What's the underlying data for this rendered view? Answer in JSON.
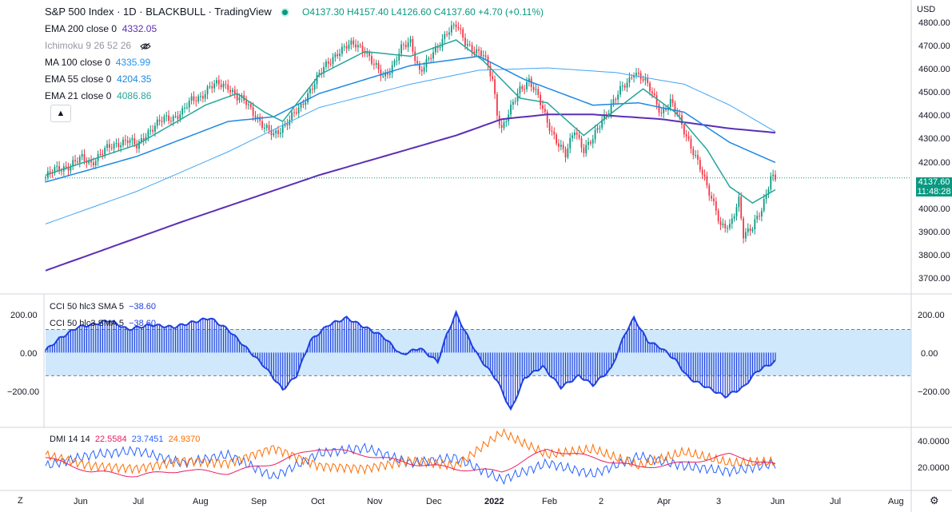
{
  "header": {
    "title": "S&P 500 Index · 1D · BLACKBULL · TradingView",
    "ohlc": "O4137.30 H4157.40 L4126.60 C4137.60 +4.70 (+0.11%)"
  },
  "indicators": [
    {
      "label": "EMA 200 close 0",
      "value": "4332.05",
      "color": "#5b2fb5"
    },
    {
      "label": "Ichimoku 9 26 52 26",
      "value": "",
      "color": "#9598a1"
    },
    {
      "label": "MA 100 close 0",
      "value": "4335.99",
      "color": "#2196f3"
    },
    {
      "label": "EMA 55 close 0",
      "value": "4204.35",
      "color": "#1e88e5"
    },
    {
      "label": "EMA 21 close 0",
      "value": "4086.86",
      "color": "#26a69a"
    }
  ],
  "colors": {
    "up": "#089981",
    "down": "#f23645",
    "ema200": "#5b2fb5",
    "ma100": "#42a5f5",
    "ema55": "#1e88e5",
    "ema21": "#26a69a",
    "cci": "#2041e0",
    "plus_di": "#2962ff",
    "minus_di": "#ff6d00",
    "adx": "#e91e63",
    "band": "#bbdefb"
  },
  "icons": {
    "visibility": "eye-off-icon",
    "collapse": "chevron-up-icon",
    "settings": "gear-icon"
  },
  "price_axis": {
    "currency": "USD",
    "ticks": [
      "4800.00",
      "4700.00",
      "4600.00",
      "4500.00",
      "4400.00",
      "4300.00",
      "4200.00",
      "4000.00",
      "3900.00",
      "3800.00",
      "3700.00"
    ],
    "last_price": "4137.60",
    "countdown": "11:48:28"
  },
  "cci_panel": {
    "label1": "CCI 50 hlc3 SMA 5",
    "value1": "−38.60",
    "label2": "CCI 50 hlc3 SMA 5",
    "value2": "−38.60",
    "ticks": [
      "200.00",
      "0.00",
      "−200.00"
    ]
  },
  "dmi_panel": {
    "label": "DMI 14 14",
    "adx": "22.5584",
    "plus_di": "23.7451",
    "minus_di": "24.9370",
    "ticks": [
      "40.0000",
      "20.0000"
    ]
  },
  "time_axis": {
    "labels": [
      "Jun",
      "Jul",
      "Aug",
      "Sep",
      "Oct",
      "Nov",
      "Dec",
      "2022",
      "Feb",
      "2",
      "Apr",
      "3",
      "Jun",
      "Jul",
      "Aug"
    ]
  },
  "controls": {
    "zoom_toggle": "Z"
  },
  "chart_data": {
    "type": "candlestick",
    "price_range": [
      3650,
      4850
    ],
    "cci_range": [
      -320,
      240
    ],
    "dmi_range": [
      5,
      48
    ],
    "months": [
      "Jun",
      "Jul",
      "Aug",
      "Sep",
      "Oct",
      "Nov",
      "Dec",
      "2022",
      "Feb",
      "2",
      "Apr",
      "3",
      "Jun",
      "Jul",
      "Aug"
    ],
    "close_path": [
      [
        0,
        4140
      ],
      [
        4,
        4170
      ],
      [
        10,
        4190
      ],
      [
        16,
        4220
      ],
      [
        20,
        4205
      ],
      [
        26,
        4255
      ],
      [
        32,
        4290
      ],
      [
        36,
        4300
      ],
      [
        40,
        4270
      ],
      [
        44,
        4330
      ],
      [
        48,
        4360
      ],
      [
        52,
        4390
      ],
      [
        56,
        4400
      ],
      [
        60,
        4420
      ],
      [
        64,
        4470
      ],
      [
        68,
        4490
      ],
      [
        72,
        4525
      ],
      [
        76,
        4540
      ],
      [
        80,
        4535
      ],
      [
        84,
        4480
      ],
      [
        88,
        4460
      ],
      [
        92,
        4410
      ],
      [
        96,
        4350
      ],
      [
        100,
        4320
      ],
      [
        104,
        4360
      ],
      [
        108,
        4400
      ],
      [
        112,
        4440
      ],
      [
        116,
        4520
      ],
      [
        120,
        4580
      ],
      [
        124,
        4630
      ],
      [
        128,
        4680
      ],
      [
        132,
        4700
      ],
      [
        136,
        4710
      ],
      [
        140,
        4690
      ],
      [
        144,
        4620
      ],
      [
        148,
        4570
      ],
      [
        152,
        4620
      ],
      [
        156,
        4690
      ],
      [
        160,
        4720
      ],
      [
        164,
        4600
      ],
      [
        168,
        4640
      ],
      [
        172,
        4700
      ],
      [
        176,
        4770
      ],
      [
        180,
        4790
      ],
      [
        184,
        4720
      ],
      [
        188,
        4690
      ],
      [
        192,
        4660
      ],
      [
        196,
        4560
      ],
      [
        198,
        4420
      ],
      [
        200,
        4350
      ],
      [
        204,
        4430
      ],
      [
        208,
        4520
      ],
      [
        212,
        4560
      ],
      [
        216,
        4480
      ],
      [
        220,
        4380
      ],
      [
        224,
        4300
      ],
      [
        228,
        4230
      ],
      [
        232,
        4350
      ],
      [
        236,
        4260
      ],
      [
        240,
        4300
      ],
      [
        244,
        4390
      ],
      [
        248,
        4450
      ],
      [
        252,
        4510
      ],
      [
        256,
        4560
      ],
      [
        258,
        4600
      ],
      [
        262,
        4560
      ],
      [
        266,
        4500
      ],
      [
        270,
        4420
      ],
      [
        274,
        4460
      ],
      [
        278,
        4390
      ],
      [
        282,
        4300
      ],
      [
        286,
        4200
      ],
      [
        290,
        4100
      ],
      [
        294,
        4010
      ],
      [
        296,
        3930
      ],
      [
        300,
        3920
      ],
      [
        304,
        4050
      ],
      [
        306,
        3900
      ],
      [
        310,
        3920
      ],
      [
        314,
        4000
      ],
      [
        318,
        4150
      ],
      [
        320,
        4137
      ]
    ],
    "series": [
      {
        "name": "EMA 200 close 0",
        "last": 4332.05,
        "path": [
          [
            0,
            3740
          ],
          [
            60,
            3950
          ],
          [
            120,
            4150
          ],
          [
            180,
            4320
          ],
          [
            200,
            4390
          ],
          [
            220,
            4410
          ],
          [
            240,
            4410
          ],
          [
            270,
            4390
          ],
          [
            300,
            4350
          ],
          [
            320,
            4332
          ]
        ]
      },
      {
        "name": "MA 100 close 0",
        "last": 4335.99,
        "path": [
          [
            0,
            3940
          ],
          [
            40,
            4080
          ],
          [
            80,
            4250
          ],
          [
            120,
            4440
          ],
          [
            160,
            4540
          ],
          [
            190,
            4600
          ],
          [
            220,
            4610
          ],
          [
            250,
            4590
          ],
          [
            280,
            4540
          ],
          [
            300,
            4450
          ],
          [
            320,
            4336
          ]
        ]
      },
      {
        "name": "EMA 55 close 0",
        "last": 4204.35,
        "path": [
          [
            0,
            4120
          ],
          [
            40,
            4230
          ],
          [
            80,
            4380
          ],
          [
            100,
            4400
          ],
          [
            120,
            4500
          ],
          [
            160,
            4620
          ],
          [
            190,
            4660
          ],
          [
            210,
            4560
          ],
          [
            240,
            4450
          ],
          [
            260,
            4460
          ],
          [
            280,
            4420
          ],
          [
            300,
            4290
          ],
          [
            320,
            4204
          ]
        ]
      },
      {
        "name": "EMA 21 close 0",
        "last": 4086.86,
        "path": [
          [
            0,
            4150
          ],
          [
            40,
            4280
          ],
          [
            70,
            4450
          ],
          [
            84,
            4500
          ],
          [
            96,
            4420
          ],
          [
            104,
            4380
          ],
          [
            120,
            4580
          ],
          [
            140,
            4680
          ],
          [
            160,
            4660
          ],
          [
            180,
            4730
          ],
          [
            192,
            4640
          ],
          [
            208,
            4480
          ],
          [
            220,
            4460
          ],
          [
            236,
            4320
          ],
          [
            250,
            4430
          ],
          [
            262,
            4520
          ],
          [
            276,
            4420
          ],
          [
            290,
            4260
          ],
          [
            300,
            4100
          ],
          [
            310,
            4030
          ],
          [
            320,
            4087
          ]
        ]
      },
      {
        "name": "CCI 50 hlc3 SMA 5",
        "last": -38.6,
        "path": [
          [
            0,
            10
          ],
          [
            6,
            60
          ],
          [
            14,
            110
          ],
          [
            20,
            120
          ],
          [
            28,
            140
          ],
          [
            36,
            100
          ],
          [
            46,
            120
          ],
          [
            56,
            110
          ],
          [
            64,
            130
          ],
          [
            72,
            150
          ],
          [
            80,
            100
          ],
          [
            88,
            20
          ],
          [
            96,
            -60
          ],
          [
            104,
            -160
          ],
          [
            110,
            -100
          ],
          [
            116,
            50
          ],
          [
            124,
            120
          ],
          [
            132,
            150
          ],
          [
            140,
            110
          ],
          [
            148,
            70
          ],
          [
            156,
            -10
          ],
          [
            164,
            20
          ],
          [
            172,
            -40
          ],
          [
            176,
            80
          ],
          [
            180,
            170
          ],
          [
            184,
            90
          ],
          [
            190,
            -20
          ],
          [
            198,
            -120
          ],
          [
            204,
            -250
          ],
          [
            210,
            -110
          ],
          [
            218,
            -60
          ],
          [
            226,
            -150
          ],
          [
            234,
            -100
          ],
          [
            240,
            -140
          ],
          [
            248,
            -70
          ],
          [
            254,
            80
          ],
          [
            258,
            150
          ],
          [
            264,
            50
          ],
          [
            270,
            20
          ],
          [
            276,
            -30
          ],
          [
            282,
            -110
          ],
          [
            290,
            -150
          ],
          [
            298,
            -190
          ],
          [
            306,
            -150
          ],
          [
            312,
            -80
          ],
          [
            320,
            -38.6
          ]
        ]
      },
      {
        "name": "DMI +DI",
        "last": 23.7451,
        "path": [
          [
            0,
            22
          ],
          [
            20,
            30
          ],
          [
            40,
            33
          ],
          [
            60,
            24
          ],
          [
            80,
            30
          ],
          [
            100,
            14
          ],
          [
            120,
            31
          ],
          [
            140,
            35
          ],
          [
            160,
            24
          ],
          [
            180,
            28
          ],
          [
            200,
            12
          ],
          [
            220,
            24
          ],
          [
            240,
            16
          ],
          [
            260,
            29
          ],
          [
            280,
            22
          ],
          [
            300,
            18
          ],
          [
            320,
            23.75
          ]
        ]
      },
      {
        "name": "DMI −DI",
        "last": 24.937,
        "path": [
          [
            0,
            30
          ],
          [
            20,
            22
          ],
          [
            40,
            20
          ],
          [
            60,
            26
          ],
          [
            80,
            24
          ],
          [
            100,
            35
          ],
          [
            120,
            22
          ],
          [
            140,
            20
          ],
          [
            160,
            26
          ],
          [
            180,
            22
          ],
          [
            200,
            46
          ],
          [
            220,
            30
          ],
          [
            240,
            34
          ],
          [
            260,
            22
          ],
          [
            280,
            32
          ],
          [
            300,
            24
          ],
          [
            320,
            24.94
          ]
        ]
      },
      {
        "name": "ADX",
        "last": 22.5584,
        "path": [
          [
            0,
            28
          ],
          [
            20,
            18
          ],
          [
            40,
            15
          ],
          [
            60,
            19
          ],
          [
            80,
            17
          ],
          [
            100,
            24
          ],
          [
            120,
            35
          ],
          [
            140,
            30
          ],
          [
            160,
            24
          ],
          [
            180,
            20
          ],
          [
            200,
            18
          ],
          [
            220,
            34
          ],
          [
            240,
            28
          ],
          [
            260,
            21
          ],
          [
            280,
            24
          ],
          [
            300,
            30
          ],
          [
            320,
            22.56
          ]
        ]
      }
    ]
  }
}
